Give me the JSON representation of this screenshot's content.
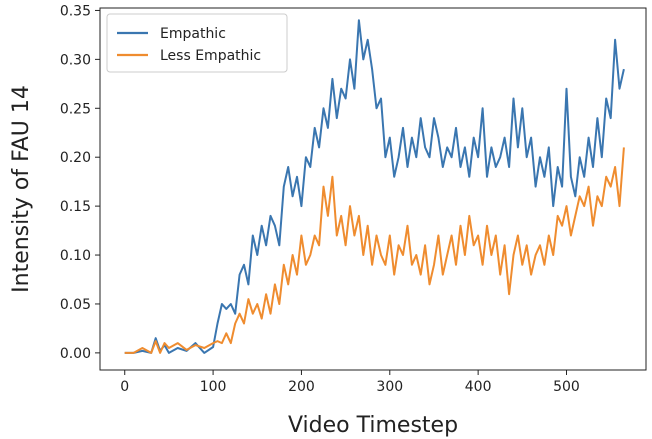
{
  "chart_data": {
    "type": "line",
    "title": "",
    "xlabel": "Video Timestep",
    "ylabel": "Intensity of FAU 14",
    "xlim": [
      -28,
      590
    ],
    "ylim": [
      -0.0175,
      0.3525
    ],
    "xticks": [
      0,
      100,
      200,
      300,
      400,
      500
    ],
    "yticks": [
      0.0,
      0.05,
      0.1,
      0.15,
      0.2,
      0.25,
      0.3,
      0.35
    ],
    "grid": false,
    "legend_position": "top-left",
    "series": [
      {
        "name": "Empathic",
        "color": "#3a76b0",
        "x": [
          0,
          10,
          20,
          30,
          35,
          40,
          45,
          50,
          60,
          70,
          80,
          90,
          100,
          105,
          110,
          115,
          120,
          125,
          130,
          135,
          140,
          145,
          150,
          155,
          160,
          165,
          170,
          175,
          180,
          185,
          190,
          195,
          200,
          205,
          210,
          215,
          220,
          225,
          230,
          235,
          240,
          245,
          250,
          255,
          260,
          265,
          270,
          275,
          280,
          285,
          290,
          295,
          300,
          305,
          310,
          315,
          320,
          325,
          330,
          335,
          340,
          345,
          350,
          355,
          360,
          365,
          370,
          375,
          380,
          385,
          390,
          395,
          400,
          405,
          410,
          415,
          420,
          425,
          430,
          435,
          440,
          445,
          450,
          455,
          460,
          465,
          470,
          475,
          480,
          485,
          490,
          495,
          500,
          505,
          510,
          515,
          520,
          525,
          530,
          535,
          540,
          545,
          550,
          555,
          560,
          565
        ],
        "y": [
          0.0,
          0.0,
          0.002,
          0.0,
          0.015,
          0.002,
          0.008,
          0.0,
          0.005,
          0.002,
          0.01,
          0.0,
          0.006,
          0.03,
          0.05,
          0.045,
          0.05,
          0.04,
          0.08,
          0.09,
          0.07,
          0.12,
          0.1,
          0.13,
          0.11,
          0.14,
          0.13,
          0.11,
          0.17,
          0.19,
          0.16,
          0.18,
          0.15,
          0.2,
          0.19,
          0.23,
          0.21,
          0.25,
          0.23,
          0.28,
          0.24,
          0.27,
          0.26,
          0.3,
          0.27,
          0.34,
          0.3,
          0.32,
          0.29,
          0.25,
          0.26,
          0.2,
          0.22,
          0.18,
          0.2,
          0.23,
          0.19,
          0.22,
          0.2,
          0.24,
          0.21,
          0.2,
          0.24,
          0.22,
          0.19,
          0.21,
          0.2,
          0.23,
          0.19,
          0.21,
          0.18,
          0.22,
          0.2,
          0.25,
          0.18,
          0.21,
          0.19,
          0.2,
          0.22,
          0.19,
          0.26,
          0.21,
          0.25,
          0.2,
          0.22,
          0.17,
          0.2,
          0.18,
          0.21,
          0.15,
          0.19,
          0.17,
          0.27,
          0.18,
          0.16,
          0.2,
          0.18,
          0.22,
          0.19,
          0.24,
          0.2,
          0.26,
          0.24,
          0.32,
          0.27,
          0.29
        ]
      },
      {
        "name": "Less Empathic",
        "color": "#ef8c2f",
        "x": [
          0,
          10,
          20,
          30,
          35,
          40,
          45,
          50,
          60,
          70,
          80,
          90,
          100,
          105,
          110,
          115,
          120,
          125,
          130,
          135,
          140,
          145,
          150,
          155,
          160,
          165,
          170,
          175,
          180,
          185,
          190,
          195,
          200,
          205,
          210,
          215,
          220,
          225,
          230,
          235,
          240,
          245,
          250,
          255,
          260,
          265,
          270,
          275,
          280,
          285,
          290,
          295,
          300,
          305,
          310,
          315,
          320,
          325,
          330,
          335,
          340,
          345,
          350,
          355,
          360,
          365,
          370,
          375,
          380,
          385,
          390,
          395,
          400,
          405,
          410,
          415,
          420,
          425,
          430,
          435,
          440,
          445,
          450,
          455,
          460,
          465,
          470,
          475,
          480,
          485,
          490,
          495,
          500,
          505,
          510,
          515,
          520,
          525,
          530,
          535,
          540,
          545,
          550,
          555,
          560,
          565
        ],
        "y": [
          0.0,
          0.0,
          0.005,
          0.0,
          0.012,
          0.0,
          0.01,
          0.005,
          0.01,
          0.003,
          0.008,
          0.005,
          0.01,
          0.012,
          0.01,
          0.02,
          0.01,
          0.03,
          0.04,
          0.03,
          0.055,
          0.04,
          0.05,
          0.035,
          0.06,
          0.04,
          0.07,
          0.05,
          0.09,
          0.07,
          0.1,
          0.08,
          0.12,
          0.09,
          0.1,
          0.12,
          0.11,
          0.17,
          0.14,
          0.18,
          0.12,
          0.14,
          0.11,
          0.15,
          0.12,
          0.14,
          0.1,
          0.13,
          0.09,
          0.12,
          0.1,
          0.09,
          0.12,
          0.08,
          0.11,
          0.1,
          0.13,
          0.09,
          0.1,
          0.08,
          0.11,
          0.07,
          0.09,
          0.12,
          0.08,
          0.1,
          0.12,
          0.09,
          0.13,
          0.1,
          0.14,
          0.11,
          0.12,
          0.09,
          0.13,
          0.1,
          0.12,
          0.08,
          0.11,
          0.06,
          0.1,
          0.12,
          0.09,
          0.11,
          0.08,
          0.1,
          0.11,
          0.09,
          0.12,
          0.1,
          0.14,
          0.13,
          0.15,
          0.12,
          0.14,
          0.16,
          0.15,
          0.17,
          0.13,
          0.16,
          0.15,
          0.18,
          0.17,
          0.19,
          0.15,
          0.21
        ]
      }
    ]
  }
}
